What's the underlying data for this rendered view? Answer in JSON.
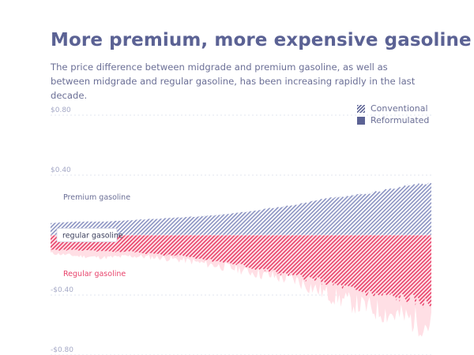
{
  "title": "More premium, more expensive gasoline",
  "subtitle": "The price difference between midgrade and premium gasoline, as well as between midgrade and regular gasoline, has been increasing rapidly in the last decade.",
  "legend": {
    "conventional_label": "Conventional",
    "reformulated_label": "Reformulated"
  },
  "colors": {
    "premium": "#8b93c2",
    "regular": "#e8436b",
    "reformulated_premium": "#dfe2f0",
    "reformulated_regular": "#ffdfe5",
    "text": "#5b6294",
    "axis_text": "#a4a8c6"
  },
  "chart_data": {
    "type": "area",
    "title": "More premium, more expensive gasoline",
    "xlabel": "",
    "ylabel": "",
    "ylim": [
      -0.8,
      0.8
    ],
    "grid": true,
    "legend_position": "top-right",
    "y_ticks": [
      "$0.80",
      "$0.40",
      "-$0.40",
      "-$0.80"
    ],
    "y_tick_values": [
      0.8,
      0.4,
      -0.4,
      -0.8
    ],
    "labels": {
      "premium": "Premium gasoline",
      "regular": "Regular gasoline",
      "tooltip": "regular gasoline"
    },
    "series": [
      {
        "name": "Conventional",
        "pattern": "hatched",
        "premium": [
          0.08,
          0.09,
          0.09,
          0.1,
          0.11,
          0.12,
          0.13,
          0.15,
          0.18,
          0.2,
          0.24,
          0.26,
          0.29,
          0.33,
          0.35
        ],
        "regular": [
          -0.1,
          -0.1,
          -0.11,
          -0.11,
          -0.13,
          -0.14,
          -0.17,
          -0.2,
          -0.24,
          -0.27,
          -0.31,
          -0.36,
          -0.4,
          -0.42,
          -0.46
        ]
      },
      {
        "name": "Reformulated",
        "pattern": "solid",
        "premium": [
          0.08,
          0.09,
          0.09,
          0.1,
          0.1,
          0.12,
          0.13,
          0.15,
          0.17,
          0.2,
          0.23,
          0.26,
          0.28,
          0.32,
          0.34
        ],
        "regular": [
          -0.12,
          -0.14,
          -0.15,
          -0.14,
          -0.15,
          -0.17,
          -0.2,
          -0.23,
          -0.27,
          -0.3,
          -0.38,
          -0.45,
          -0.5,
          -0.55,
          -0.6
        ]
      }
    ]
  }
}
